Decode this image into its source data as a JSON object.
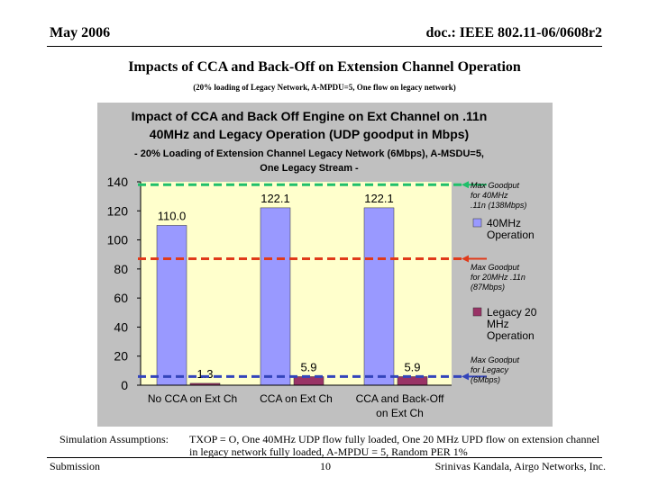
{
  "header": {
    "date": "May 2006",
    "doc": "doc.: IEEE 802.11-06/0608r2"
  },
  "slide": {
    "title": "Impacts of CCA and Back-Off on Extension Channel Operation",
    "subtitle": "(20% loading of Legacy Network, A-MPDU=5, One flow on legacy network)"
  },
  "chart_data": {
    "type": "bar",
    "title_lines": [
      "Impact of CCA and Back Off Engine on Ext Channel on .11n",
      "40MHz and Legacy Operation (UDP goodput in Mbps)",
      "- 20% Loading of Extension Channel Legacy Network (6Mbps), A-MSDU=5,",
      "One Legacy Stream -"
    ],
    "categories": [
      [
        "No CCA on Ext Ch"
      ],
      [
        "CCA on Ext Ch"
      ],
      [
        "CCA and Back-Off",
        "on Ext Ch"
      ]
    ],
    "series": [
      {
        "name": "40MHz Operation",
        "legend_lines": [
          "40MHz",
          "Operation"
        ],
        "color": "#9999ff",
        "values": [
          110.0,
          122.1,
          122.1
        ],
        "labels": [
          "110.0",
          "122.1",
          "122.1"
        ]
      },
      {
        "name": "Legacy 20 MHz Operation",
        "legend_lines": [
          "Legacy 20",
          "MHz",
          "Operation"
        ],
        "color": "#993366",
        "values": [
          1.3,
          5.9,
          5.9
        ],
        "labels": [
          "1.3",
          "5.9",
          "5.9"
        ]
      }
    ],
    "ylim": [
      0,
      140
    ],
    "yticks": [
      0,
      20,
      40,
      60,
      80,
      100,
      120,
      140
    ],
    "reference_lines": [
      {
        "value": 138,
        "color": "#1fbf6a",
        "label_lines": [
          "Max Goodput",
          "for 40MHz",
          ".11n (138Mbps)"
        ]
      },
      {
        "value": 87,
        "color": "#e03a1a",
        "label_lines": [
          "Max Goodput",
          "for 20MHz .11n",
          "(87Mbps)"
        ]
      },
      {
        "value": 6,
        "color": "#3344bb",
        "label_lines": [
          "Max Goodput",
          "for Legacy",
          "(6Mbps)"
        ]
      }
    ],
    "colors": {
      "chart_bg": "#c0c0c0",
      "plot_bg": "#ffffcc"
    }
  },
  "assumptions": {
    "label": "Simulation Assumptions:",
    "line1": "TXOP = O, One 40MHz UDP flow fully loaded, One 20 MHz UPD flow on extension channel",
    "line2": "in legacy network fully loaded, A-MPDU = 5, Random PER 1%"
  },
  "footer": {
    "left": "Submission",
    "page": "10",
    "right": "Srinivas Kandala, Airgo Networks, Inc."
  }
}
